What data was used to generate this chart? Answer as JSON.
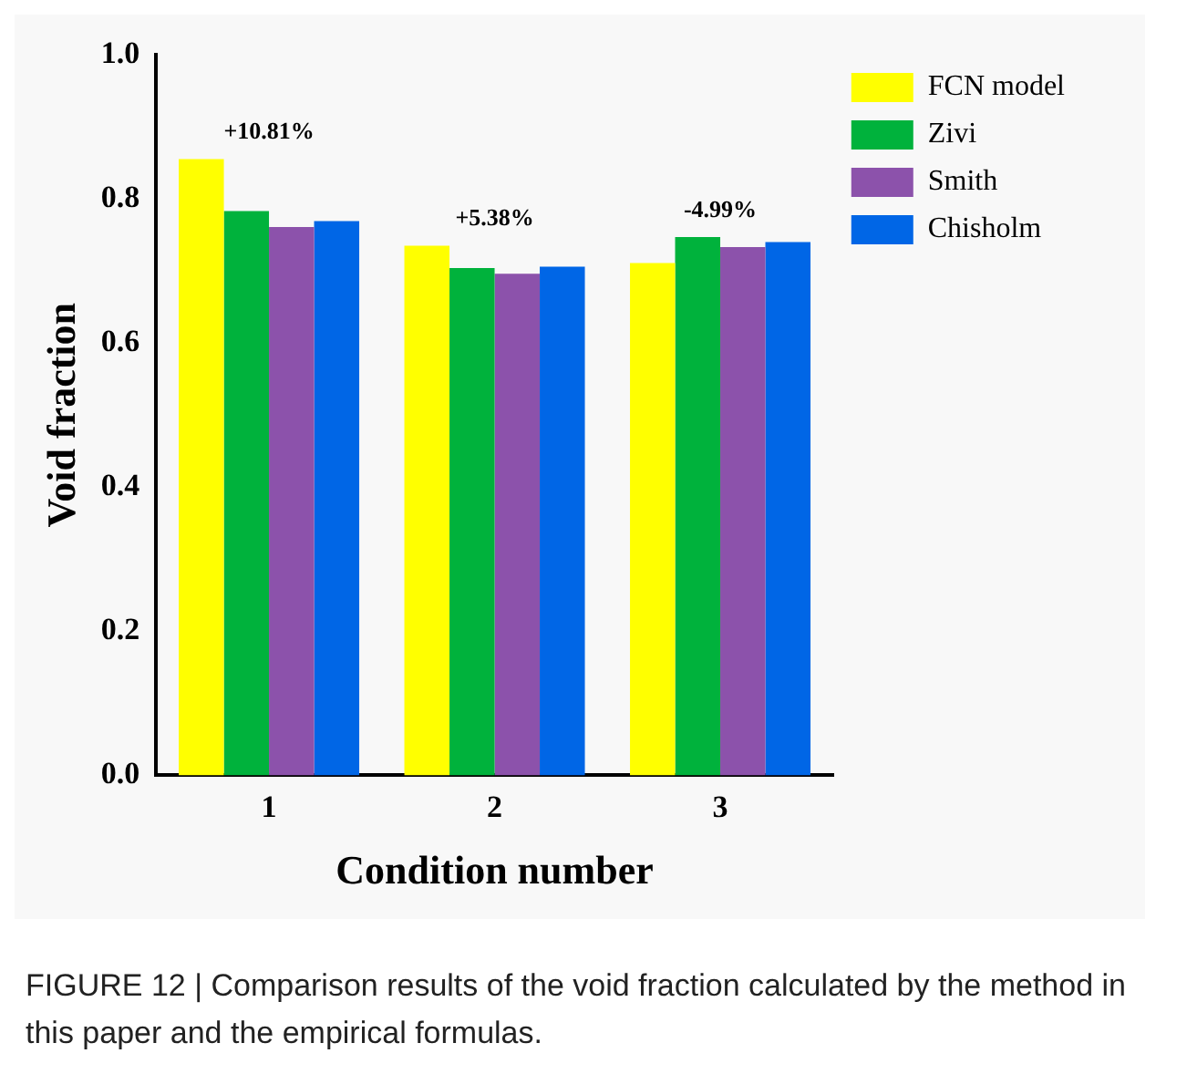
{
  "chart_data": {
    "type": "bar",
    "xlabel": "Condition number",
    "ylabel": "Void fraction",
    "categories": [
      "1",
      "2",
      "3"
    ],
    "series": [
      {
        "name": "FCN model",
        "color": "#ffff00",
        "values": [
          0.855,
          0.735,
          0.711
        ]
      },
      {
        "name": "Zivi",
        "color": "#00b23c",
        "values": [
          0.783,
          0.704,
          0.747
        ]
      },
      {
        "name": "Smith",
        "color": "#8c52ab",
        "values": [
          0.761,
          0.696,
          0.733
        ]
      },
      {
        "name": "Chisholm",
        "color": "#0066e6",
        "values": [
          0.769,
          0.706,
          0.74
        ]
      }
    ],
    "ylim": [
      0,
      1
    ],
    "yticks": [
      {
        "value": 0,
        "label": "0.0"
      },
      {
        "value": 0.2,
        "label": "0.2"
      },
      {
        "value": 0.4,
        "label": "0.4"
      },
      {
        "value": 0.6,
        "label": "0.6"
      },
      {
        "value": 0.8,
        "label": "0.8"
      },
      {
        "value": 1,
        "label": "1.0"
      }
    ],
    "grid": false,
    "legend": "top right",
    "annotations": [
      "+10.81%",
      "+5.38%",
      "-4.99%",
      "FIGURE 12 | Comparison results of the void fraction calculated by the method in this paper and the empirical formulas."
    ]
  }
}
